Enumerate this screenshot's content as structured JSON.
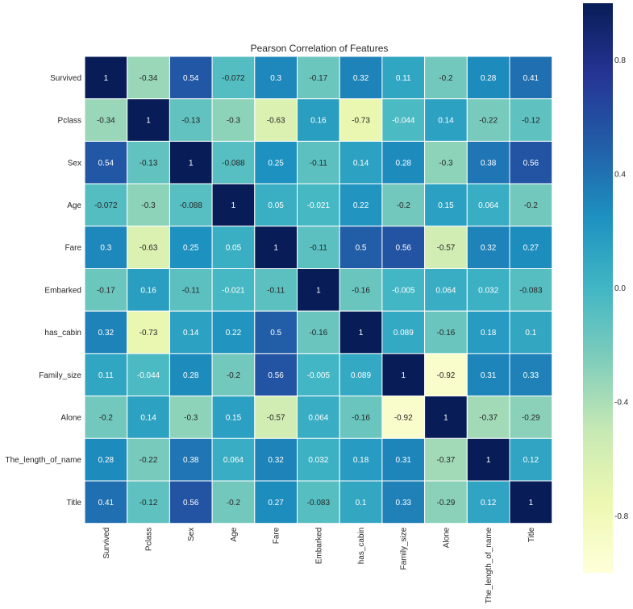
{
  "chart_data": {
    "type": "heatmap",
    "title": "Pearson Correlation of Features",
    "xlabel": "",
    "ylabel": "",
    "labels": [
      "Survived",
      "Pclass",
      "Sex",
      "Age",
      "Fare",
      "Embarked",
      "has_cabin",
      "Family_size",
      "Alone",
      "The_length_of_name",
      "Title"
    ],
    "matrix": [
      [
        1,
        -0.34,
        0.54,
        -0.072,
        0.3,
        -0.17,
        0.32,
        0.11,
        -0.2,
        0.28,
        0.41
      ],
      [
        -0.34,
        1,
        -0.13,
        -0.3,
        -0.63,
        0.16,
        -0.73,
        -0.044,
        0.14,
        -0.22,
        -0.12
      ],
      [
        0.54,
        -0.13,
        1,
        -0.088,
        0.25,
        -0.11,
        0.14,
        0.28,
        -0.3,
        0.38,
        0.56
      ],
      [
        -0.072,
        -0.3,
        -0.088,
        1,
        0.05,
        -0.021,
        0.22,
        -0.2,
        0.15,
        0.064,
        -0.2
      ],
      [
        0.3,
        -0.63,
        0.25,
        0.05,
        1,
        -0.11,
        0.5,
        0.56,
        -0.57,
        0.32,
        0.27
      ],
      [
        -0.17,
        0.16,
        -0.11,
        -0.021,
        -0.11,
        1,
        -0.16,
        -0.005,
        0.064,
        0.032,
        -0.083
      ],
      [
        0.32,
        -0.73,
        0.14,
        0.22,
        0.5,
        -0.16,
        1,
        0.089,
        -0.16,
        0.18,
        0.1
      ],
      [
        0.11,
        -0.044,
        0.28,
        -0.2,
        0.56,
        -0.005,
        0.089,
        1,
        -0.92,
        0.31,
        0.33
      ],
      [
        -0.2,
        0.14,
        -0.3,
        0.15,
        -0.57,
        0.064,
        -0.16,
        -0.92,
        1,
        -0.37,
        -0.29
      ],
      [
        0.28,
        -0.22,
        0.38,
        0.064,
        0.32,
        0.032,
        0.18,
        0.31,
        -0.37,
        1,
        0.12
      ],
      [
        0.41,
        -0.12,
        0.56,
        -0.2,
        0.27,
        -0.083,
        0.1,
        0.33,
        -0.29,
        0.12,
        1
      ]
    ],
    "vmin": -1,
    "vmax": 1,
    "colormap": "YlGnBu",
    "colorbar": {
      "ticks": [
        0.8,
        0.4,
        0.0,
        -0.4,
        -0.8
      ],
      "tick_labels": [
        "0.8",
        "0.4",
        "0.0",
        "-0.4",
        "-0.8"
      ]
    },
    "annotate": true,
    "grid": false
  },
  "colors": {
    "cell_border": "#ffffff",
    "text_dark": "#262626",
    "text_light": "#ffffff",
    "background": "#ffffff"
  }
}
